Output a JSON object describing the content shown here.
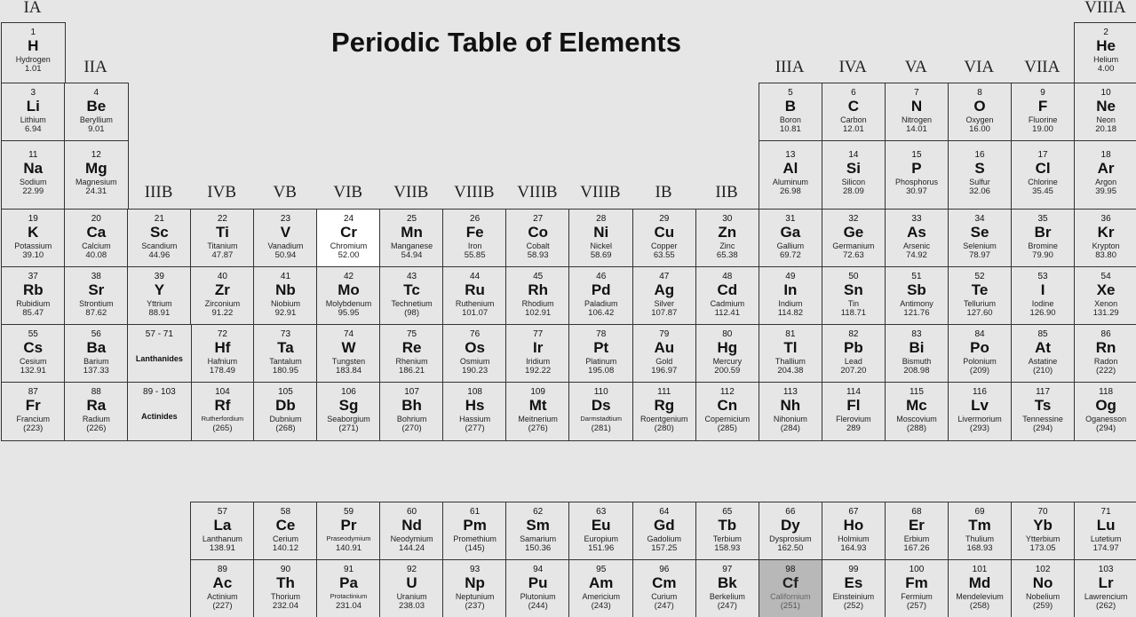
{
  "title": "Periodic Table of Elements",
  "highlight_colors": {
    "white": "#ffffff",
    "gray": "#b8b8b8"
  },
  "highlighted": {
    "Cr": "white",
    "Cf": "gray"
  },
  "group_labels": [
    {
      "label": "IA",
      "group": 1
    },
    {
      "label": "IIA",
      "group": 2
    },
    {
      "label": "IIIB",
      "group": 3
    },
    {
      "label": "IVB",
      "group": 4
    },
    {
      "label": "VB",
      "group": 5
    },
    {
      "label": "VIB",
      "group": 6
    },
    {
      "label": "VIIB",
      "group": 7
    },
    {
      "label": "VIIIB",
      "group": 8
    },
    {
      "label": "VIIIB",
      "group": 9
    },
    {
      "label": "VIIIB",
      "group": 10
    },
    {
      "label": "IB",
      "group": 11
    },
    {
      "label": "IIB",
      "group": 12
    },
    {
      "label": "IIIA",
      "group": 13
    },
    {
      "label": "IVA",
      "group": 14
    },
    {
      "label": "VA",
      "group": 15
    },
    {
      "label": "VIA",
      "group": 16
    },
    {
      "label": "VIIA",
      "group": 17
    },
    {
      "label": "VIIIA",
      "group": 18
    }
  ],
  "placeholders": [
    {
      "range": "57 - 71",
      "label": "Lanthanides",
      "group": 3,
      "period": 6
    },
    {
      "range": "89 - 103",
      "label": "Actinides",
      "group": 3,
      "period": 7
    }
  ],
  "elements": [
    [
      1,
      "H",
      "Hydrogen",
      "1.01",
      1,
      1
    ],
    [
      2,
      "He",
      "Helium",
      "4.00",
      18,
      1
    ],
    [
      3,
      "Li",
      "Lithium",
      "6.94",
      1,
      2
    ],
    [
      4,
      "Be",
      "Beryllium",
      "9.01",
      2,
      2
    ],
    [
      5,
      "B",
      "Boron",
      "10.81",
      13,
      2
    ],
    [
      6,
      "C",
      "Carbon",
      "12.01",
      14,
      2
    ],
    [
      7,
      "N",
      "Nitrogen",
      "14.01",
      15,
      2
    ],
    [
      8,
      "O",
      "Oxygen",
      "16.00",
      16,
      2
    ],
    [
      9,
      "F",
      "Fluorine",
      "19.00",
      17,
      2
    ],
    [
      10,
      "Ne",
      "Neon",
      "20.18",
      18,
      2
    ],
    [
      11,
      "Na",
      "Sodium",
      "22.99",
      1,
      3
    ],
    [
      12,
      "Mg",
      "Magnesium",
      "24.31",
      2,
      3
    ],
    [
      13,
      "Al",
      "Aluminum",
      "26.98",
      13,
      3
    ],
    [
      14,
      "Si",
      "Silicon",
      "28.09",
      14,
      3
    ],
    [
      15,
      "P",
      "Phosphorus",
      "30.97",
      15,
      3
    ],
    [
      16,
      "S",
      "Sulfur",
      "32.06",
      16,
      3
    ],
    [
      17,
      "Cl",
      "Chlorine",
      "35.45",
      17,
      3
    ],
    [
      18,
      "Ar",
      "Argon",
      "39.95",
      18,
      3
    ],
    [
      19,
      "K",
      "Potassium",
      "39.10",
      1,
      4
    ],
    [
      20,
      "Ca",
      "Calcium",
      "40.08",
      2,
      4
    ],
    [
      21,
      "Sc",
      "Scandium",
      "44.96",
      3,
      4
    ],
    [
      22,
      "Ti",
      "Titanium",
      "47.87",
      4,
      4
    ],
    [
      23,
      "V",
      "Vanadium",
      "50.94",
      5,
      4
    ],
    [
      24,
      "Cr",
      "Chromium",
      "52.00",
      6,
      4
    ],
    [
      25,
      "Mn",
      "Manganese",
      "54.94",
      7,
      4
    ],
    [
      26,
      "Fe",
      "Iron",
      "55.85",
      8,
      4
    ],
    [
      27,
      "Co",
      "Cobalt",
      "58.93",
      9,
      4
    ],
    [
      28,
      "Ni",
      "Nickel",
      "58.69",
      10,
      4
    ],
    [
      29,
      "Cu",
      "Copper",
      "63.55",
      11,
      4
    ],
    [
      30,
      "Zn",
      "Zinc",
      "65.38",
      12,
      4
    ],
    [
      31,
      "Ga",
      "Gallium",
      "69.72",
      13,
      4
    ],
    [
      32,
      "Ge",
      "Germanium",
      "72.63",
      14,
      4
    ],
    [
      33,
      "As",
      "Arsenic",
      "74.92",
      15,
      4
    ],
    [
      34,
      "Se",
      "Selenium",
      "78.97",
      16,
      4
    ],
    [
      35,
      "Br",
      "Bromine",
      "79.90",
      17,
      4
    ],
    [
      36,
      "Kr",
      "Krypton",
      "83.80",
      18,
      4
    ],
    [
      37,
      "Rb",
      "Rubidium",
      "85.47",
      1,
      5
    ],
    [
      38,
      "Sr",
      "Strontium",
      "87.62",
      2,
      5
    ],
    [
      39,
      "Y",
      "Yttrium",
      "88.91",
      3,
      5
    ],
    [
      40,
      "Zr",
      "Zirconium",
      "91.22",
      4,
      5
    ],
    [
      41,
      "Nb",
      "Niobium",
      "92.91",
      5,
      5
    ],
    [
      42,
      "Mo",
      "Molybdenum",
      "95.95",
      6,
      5
    ],
    [
      43,
      "Tc",
      "Technetium",
      "(98)",
      7,
      5
    ],
    [
      44,
      "Ru",
      "Ruthenium",
      "101.07",
      8,
      5
    ],
    [
      45,
      "Rh",
      "Rhodium",
      "102.91",
      9,
      5
    ],
    [
      46,
      "Pd",
      "Paladium",
      "106.42",
      10,
      5
    ],
    [
      47,
      "Ag",
      "Silver",
      "107.87",
      11,
      5
    ],
    [
      48,
      "Cd",
      "Cadmium",
      "112.41",
      12,
      5
    ],
    [
      49,
      "In",
      "Indium",
      "114.82",
      13,
      5
    ],
    [
      50,
      "Sn",
      "Tin",
      "118.71",
      14,
      5
    ],
    [
      51,
      "Sb",
      "Antimony",
      "121.76",
      15,
      5
    ],
    [
      52,
      "Te",
      "Tellurium",
      "127.60",
      16,
      5
    ],
    [
      53,
      "I",
      "Iodine",
      "126.90",
      17,
      5
    ],
    [
      54,
      "Xe",
      "Xenon",
      "131.29",
      18,
      5
    ],
    [
      55,
      "Cs",
      "Cesium",
      "132.91",
      1,
      6
    ],
    [
      56,
      "Ba",
      "Barium",
      "137.33",
      2,
      6
    ],
    [
      72,
      "Hf",
      "Hafnium",
      "178.49",
      4,
      6
    ],
    [
      73,
      "Ta",
      "Tantalum",
      "180.95",
      5,
      6
    ],
    [
      74,
      "W",
      "Tungsten",
      "183.84",
      6,
      6
    ],
    [
      75,
      "Re",
      "Rhenium",
      "186.21",
      7,
      6
    ],
    [
      76,
      "Os",
      "Osmium",
      "190.23",
      8,
      6
    ],
    [
      77,
      "Ir",
      "Iridium",
      "192.22",
      9,
      6
    ],
    [
      78,
      "Pt",
      "Platinum",
      "195.08",
      10,
      6
    ],
    [
      79,
      "Au",
      "Gold",
      "196.97",
      11,
      6
    ],
    [
      80,
      "Hg",
      "Mercury",
      "200.59",
      12,
      6
    ],
    [
      81,
      "Tl",
      "Thallium",
      "204.38",
      13,
      6
    ],
    [
      82,
      "Pb",
      "Lead",
      "207.20",
      14,
      6
    ],
    [
      83,
      "Bi",
      "Bismuth",
      "208.98",
      15,
      6
    ],
    [
      84,
      "Po",
      "Polonium",
      "(209)",
      16,
      6
    ],
    [
      85,
      "At",
      "Astatine",
      "(210)",
      17,
      6
    ],
    [
      86,
      "Rn",
      "Radon",
      "(222)",
      18,
      6
    ],
    [
      87,
      "Fr",
      "Francium",
      "(223)",
      1,
      7
    ],
    [
      88,
      "Ra",
      "Radium",
      "(226)",
      2,
      7
    ],
    [
      104,
      "Rf",
      "Rutherfordium",
      "(265)",
      4,
      7
    ],
    [
      105,
      "Db",
      "Dubnium",
      "(268)",
      5,
      7
    ],
    [
      106,
      "Sg",
      "Seaborgium",
      "(271)",
      6,
      7
    ],
    [
      107,
      "Bh",
      "Bohrium",
      "(270)",
      7,
      7
    ],
    [
      108,
      "Hs",
      "Hassium",
      "(277)",
      8,
      7
    ],
    [
      109,
      "Mt",
      "Meitnerium",
      "(276)",
      9,
      7
    ],
    [
      110,
      "Ds",
      "Darmstadtium",
      "(281)",
      10,
      7
    ],
    [
      111,
      "Rg",
      "Roentgenium",
      "(280)",
      11,
      7
    ],
    [
      112,
      "Cn",
      "Copernicium",
      "(285)",
      12,
      7
    ],
    [
      113,
      "Nh",
      "Nihonium",
      "(284)",
      13,
      7
    ],
    [
      114,
      "Fl",
      "Flerovium",
      "289",
      14,
      7
    ],
    [
      115,
      "Mc",
      "Moscovium",
      "(288)",
      15,
      7
    ],
    [
      116,
      "Lv",
      "Livermorium",
      "(293)",
      16,
      7
    ],
    [
      117,
      "Ts",
      "Tennessine",
      "(294)",
      17,
      7
    ],
    [
      118,
      "Og",
      "Oganesson",
      "(294)",
      18,
      7
    ]
  ],
  "lanthanides": [
    [
      57,
      "La",
      "Lanthanum",
      "138.91"
    ],
    [
      58,
      "Ce",
      "Cerium",
      "140.12"
    ],
    [
      59,
      "Pr",
      "Praseodymium",
      "140.91"
    ],
    [
      60,
      "Nd",
      "Neodymium",
      "144.24"
    ],
    [
      61,
      "Pm",
      "Promethium",
      "(145)"
    ],
    [
      62,
      "Sm",
      "Samarium",
      "150.36"
    ],
    [
      63,
      "Eu",
      "Europium",
      "151.96"
    ],
    [
      64,
      "Gd",
      "Gadolium",
      "157.25"
    ],
    [
      65,
      "Tb",
      "Terbium",
      "158.93"
    ],
    [
      66,
      "Dy",
      "Dysprosium",
      "162.50"
    ],
    [
      67,
      "Ho",
      "Holmium",
      "164.93"
    ],
    [
      68,
      "Er",
      "Erbium",
      "167.26"
    ],
    [
      69,
      "Tm",
      "Thulium",
      "168.93"
    ],
    [
      70,
      "Yb",
      "Ytterbium",
      "173.05"
    ],
    [
      71,
      "Lu",
      "Lutetium",
      "174.97"
    ]
  ],
  "actinides": [
    [
      89,
      "Ac",
      "Actinium",
      "(227)"
    ],
    [
      90,
      "Th",
      "Thorium",
      "232.04"
    ],
    [
      91,
      "Pa",
      "Protactinium",
      "231.04"
    ],
    [
      92,
      "U",
      "Uranium",
      "238.03"
    ],
    [
      93,
      "Np",
      "Neptunium",
      "(237)"
    ],
    [
      94,
      "Pu",
      "Plutonium",
      "(244)"
    ],
    [
      95,
      "Am",
      "Americium",
      "(243)"
    ],
    [
      96,
      "Cm",
      "Curium",
      "(247)"
    ],
    [
      97,
      "Bk",
      "Berkelium",
      "(247)"
    ],
    [
      98,
      "Cf",
      "Californium",
      "(251)"
    ],
    [
      99,
      "Es",
      "Einsteinium",
      "(252)"
    ],
    [
      100,
      "Fm",
      "Fermium",
      "(257)"
    ],
    [
      101,
      "Md",
      "Mendelevium",
      "(258)"
    ],
    [
      102,
      "No",
      "Nobelium",
      "(259)"
    ],
    [
      103,
      "Lr",
      "Lawrencium",
      "(262)"
    ]
  ]
}
